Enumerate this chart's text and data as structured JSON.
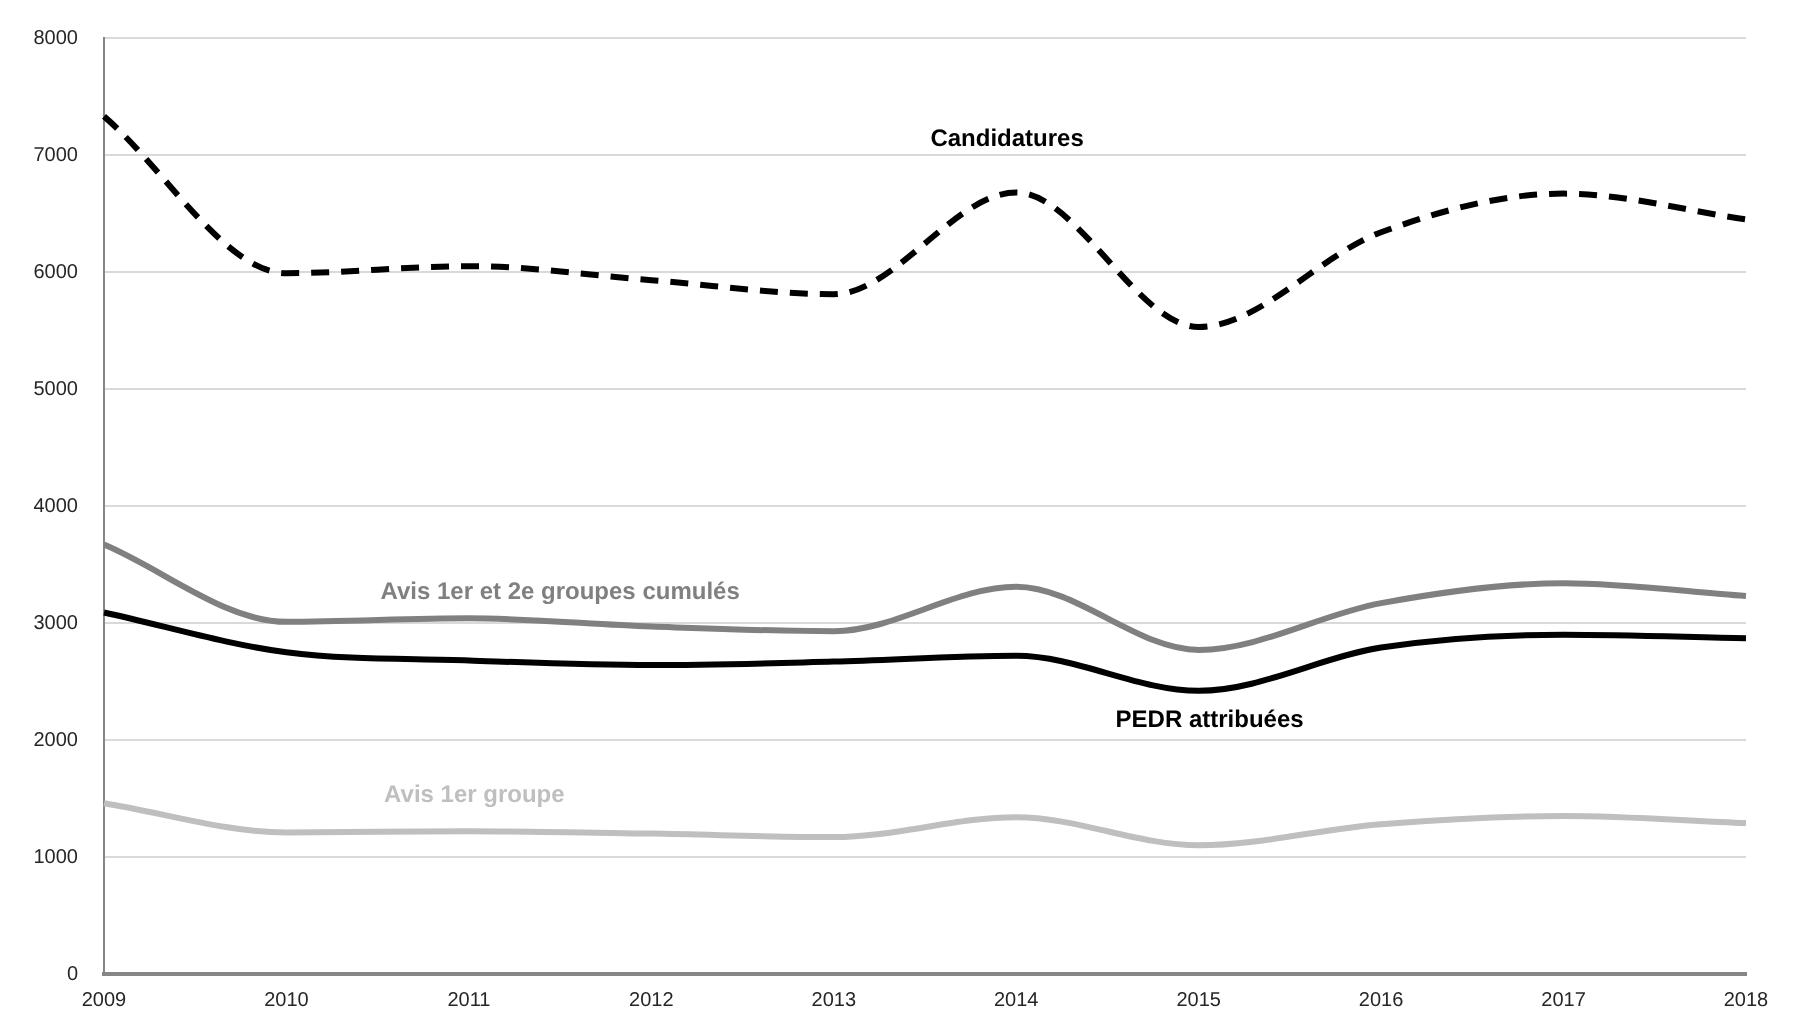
{
  "chart_data": {
    "type": "line",
    "categories": [
      "2009",
      "2010",
      "2011",
      "2012",
      "2013",
      "2014",
      "2015",
      "2016",
      "2017",
      "2018"
    ],
    "series": [
      {
        "name": "Candidatures",
        "color": "#000000",
        "line_style": "dashed",
        "values": [
          7330,
          5990,
          6050,
          5930,
          5810,
          6680,
          5530,
          6340,
          6670,
          6450
        ]
      },
      {
        "name": "Avis 1er et 2e groupes cumulés",
        "color": "#808080",
        "values": [
          3670,
          3010,
          3040,
          2970,
          2930,
          3310,
          2770,
          3170,
          3340,
          3230
        ]
      },
      {
        "name": "PEDR attribuées",
        "color": "#000000",
        "values": [
          3090,
          2750,
          2680,
          2640,
          2670,
          2720,
          2420,
          2790,
          2900,
          2870
        ]
      },
      {
        "name": "Avis 1er groupe",
        "color": "#bfbfbf",
        "values": [
          1460,
          1210,
          1220,
          1200,
          1170,
          1340,
          1100,
          1280,
          1350,
          1290
        ]
      }
    ],
    "ylim": [
      0,
      8000
    ],
    "yticks": [
      0,
      1000,
      2000,
      3000,
      4000,
      5000,
      6000,
      7000,
      8000
    ],
    "grid": "y",
    "legend": false,
    "marker": "none",
    "line_style": "solid"
  }
}
